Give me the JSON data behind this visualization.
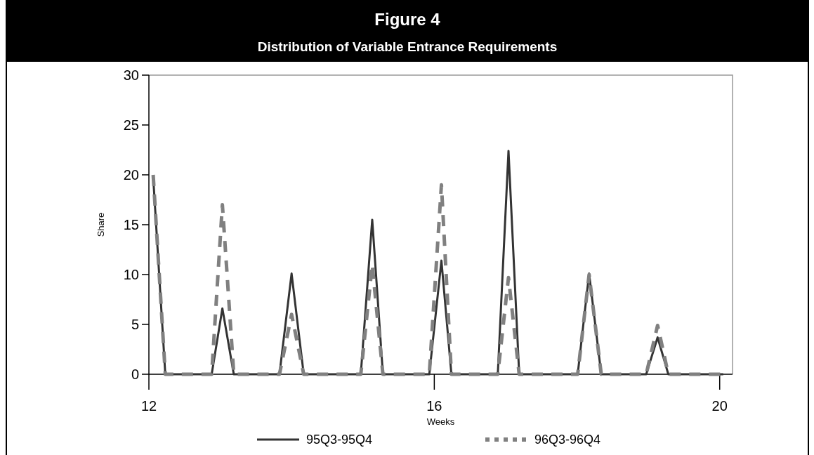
{
  "chart_data": {
    "type": "line",
    "title": "Figure 4",
    "subtitle": "Distribution of Variable Entrance Requirements",
    "xlabel": "Weeks",
    "ylabel": "Share",
    "x": [
      12.06,
      12.23,
      12.88,
      13.03,
      13.19,
      13.83,
      14.0,
      14.17,
      14.97,
      15.13,
      15.28,
      15.93,
      16.1,
      16.24,
      16.89,
      17.04,
      17.19,
      18.01,
      18.17,
      18.34,
      18.97,
      19.13,
      19.28,
      20.05
    ],
    "series": [
      {
        "name": "95Q3-95Q4",
        "color": "#333333",
        "line_style": "solid",
        "values": [
          19.8,
          0,
          0,
          6.6,
          0,
          0,
          10.1,
          0,
          0,
          15.5,
          0,
          0,
          11.4,
          0,
          0,
          22.4,
          0,
          0,
          10.1,
          0,
          0,
          3.7,
          0,
          0
        ]
      },
      {
        "name": "96Q3-96Q4",
        "color": "#808080",
        "line_style": "dashed",
        "values": [
          20,
          0,
          0,
          17,
          0,
          0,
          6,
          0,
          0,
          11,
          0,
          0,
          19,
          0,
          0,
          9.7,
          0,
          0,
          10,
          0,
          0,
          4.9,
          0,
          0
        ]
      }
    ],
    "xlim": [
      12,
      20.18
    ],
    "xticks": [
      12,
      16,
      20
    ],
    "ylim": [
      0,
      30
    ],
    "yticks": [
      0,
      5,
      10,
      15,
      20,
      25,
      30
    ],
    "legend": "bottom",
    "grid": false,
    "marker": "none"
  }
}
